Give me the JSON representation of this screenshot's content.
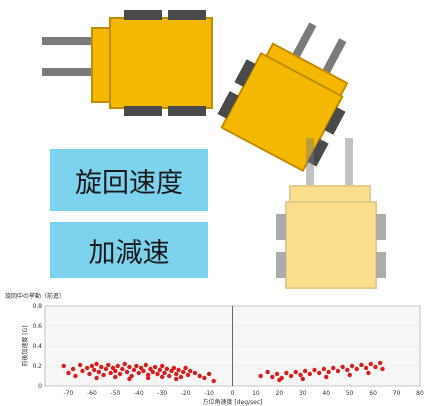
{
  "labels": {
    "turn_speed": "旋回速度",
    "acceleration": "加減速"
  },
  "colors": {
    "robot_body": "#f5b800",
    "robot_ghost": "#fbe3a0",
    "gripper": "#7a7a7a",
    "label_box": "#7dd3ee",
    "points": "#dd1a1a"
  },
  "chart_data": {
    "type": "scatter",
    "title": "旋回中の挙動（前進）",
    "xlabel": "方位角速度 [deg/sec]",
    "ylabel": "前後加速度 [G]",
    "xlim": [
      -80,
      80
    ],
    "ylim": [
      0,
      0.8
    ],
    "xticks": [
      -70,
      -60,
      -50,
      -40,
      -30,
      -20,
      -10,
      0,
      10,
      20,
      30,
      40,
      50,
      60,
      70,
      80
    ],
    "yticks": [
      0,
      0.2,
      0.4,
      0.6,
      0.8
    ],
    "grid": true,
    "points": [
      [
        -72,
        0.2
      ],
      [
        -70,
        0.13
      ],
      [
        -68,
        0.17
      ],
      [
        -67,
        0.1
      ],
      [
        -65,
        0.21
      ],
      [
        -64,
        0.15
      ],
      [
        -62,
        0.18
      ],
      [
        -61,
        0.12
      ],
      [
        -60,
        0.2
      ],
      [
        -59,
        0.16
      ],
      [
        -58,
        0.22
      ],
      [
        -57,
        0.14
      ],
      [
        -56,
        0.19
      ],
      [
        -55,
        0.11
      ],
      [
        -54,
        0.17
      ],
      [
        -53,
        0.21
      ],
      [
        -52,
        0.13
      ],
      [
        -51,
        0.18
      ],
      [
        -50,
        0.15
      ],
      [
        -49,
        0.2
      ],
      [
        -48,
        0.12
      ],
      [
        -47,
        0.17
      ],
      [
        -46,
        0.22
      ],
      [
        -45,
        0.14
      ],
      [
        -44,
        0.19
      ],
      [
        -43,
        0.1
      ],
      [
        -42,
        0.16
      ],
      [
        -41,
        0.2
      ],
      [
        -40,
        0.13
      ],
      [
        -39,
        0.18
      ],
      [
        -38,
        0.15
      ],
      [
        -37,
        0.21
      ],
      [
        -36,
        0.11
      ],
      [
        -35,
        0.17
      ],
      [
        -34,
        0.14
      ],
      [
        -33,
        0.19
      ],
      [
        -32,
        0.12
      ],
      [
        -31,
        0.16
      ],
      [
        -30,
        0.2
      ],
      [
        -29,
        0.13
      ],
      [
        -28,
        0.17
      ],
      [
        -27,
        0.1
      ],
      [
        -26,
        0.15
      ],
      [
        -25,
        0.18
      ],
      [
        -24,
        0.12
      ],
      [
        -23,
        0.16
      ],
      [
        -22,
        0.09
      ],
      [
        -21,
        0.14
      ],
      [
        -20,
        0.18
      ],
      [
        -19,
        0.11
      ],
      [
        -18,
        0.15
      ],
      [
        -16,
        0.13
      ],
      [
        -14,
        0.1
      ],
      [
        -12,
        0.08
      ],
      [
        -10,
        0.12
      ],
      [
        -8,
        0.05
      ],
      [
        -58,
        0.08
      ],
      [
        -50,
        0.09
      ],
      [
        -44,
        0.07
      ],
      [
        -36,
        0.08
      ],
      [
        -30,
        0.09
      ],
      [
        -24,
        0.07
      ],
      [
        12,
        0.1
      ],
      [
        15,
        0.14
      ],
      [
        17,
        0.09
      ],
      [
        19,
        0.12
      ],
      [
        21,
        0.08
      ],
      [
        23,
        0.13
      ],
      [
        25,
        0.1
      ],
      [
        27,
        0.14
      ],
      [
        29,
        0.11
      ],
      [
        31,
        0.15
      ],
      [
        33,
        0.12
      ],
      [
        35,
        0.16
      ],
      [
        37,
        0.13
      ],
      [
        39,
        0.17
      ],
      [
        41,
        0.14
      ],
      [
        43,
        0.18
      ],
      [
        45,
        0.15
      ],
      [
        47,
        0.19
      ],
      [
        49,
        0.16
      ],
      [
        51,
        0.2
      ],
      [
        53,
        0.17
      ],
      [
        55,
        0.21
      ],
      [
        57,
        0.18
      ],
      [
        59,
        0.22
      ],
      [
        61,
        0.19
      ],
      [
        63,
        0.23
      ],
      [
        64,
        0.17
      ],
      [
        20,
        0.06
      ],
      [
        30,
        0.07
      ],
      [
        40,
        0.09
      ],
      [
        50,
        0.11
      ],
      [
        58,
        0.13
      ]
    ]
  }
}
